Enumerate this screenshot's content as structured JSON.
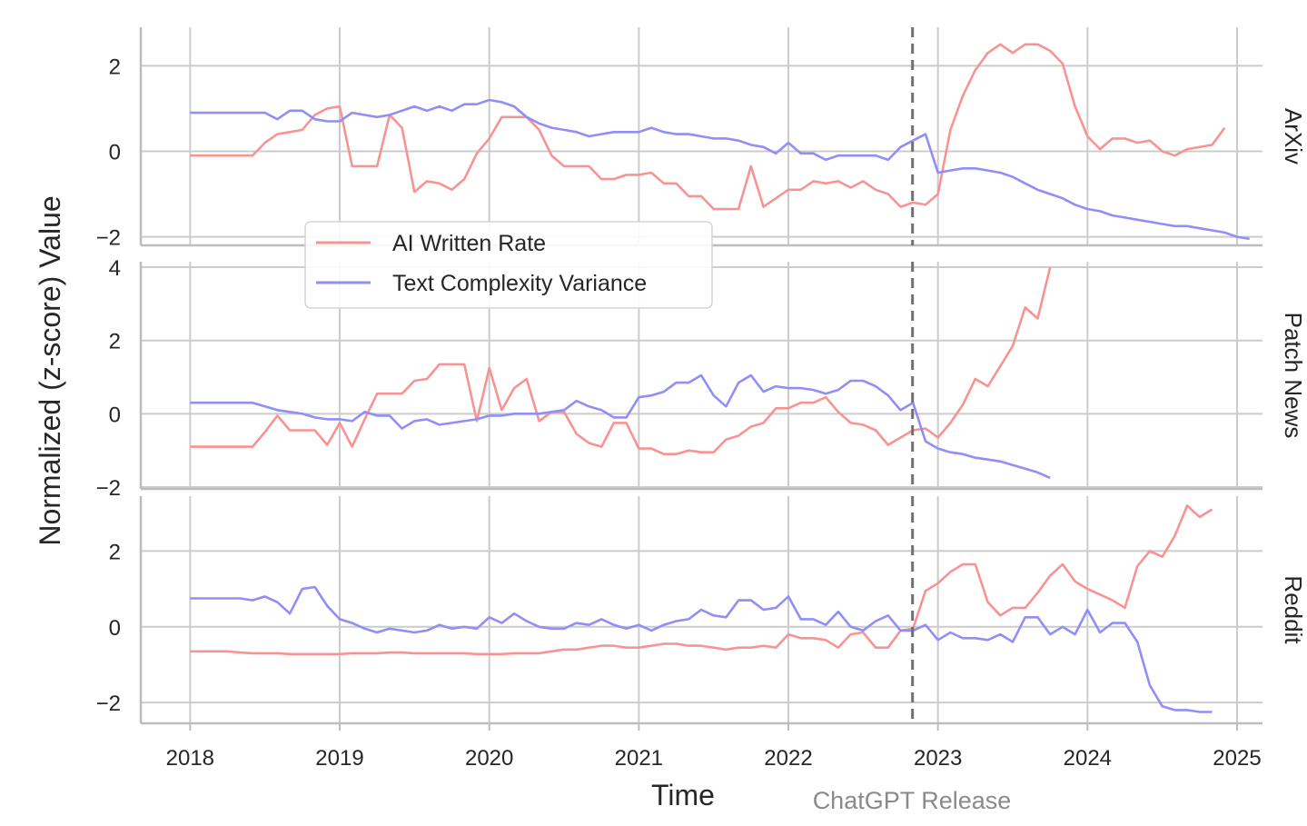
{
  "chart_data": {
    "type": "line",
    "xlabel": "Time",
    "ylabel": "Normalized (z-score) Value",
    "x_ticks": [
      "2018",
      "2019",
      "2020",
      "2021",
      "2022",
      "2023",
      "2024",
      "2025"
    ],
    "x_range": [
      2017.67,
      2025.17
    ],
    "grid": true,
    "legend_position": "top-left",
    "legend": [
      "AI Written Rate",
      "Text Complexity Variance"
    ],
    "colors": {
      "ai": "#f79493",
      "tcv": "#8f8ff5",
      "vline": "#707070",
      "grid": "#cccccc"
    },
    "annotation": {
      "text": "ChatGPT Release",
      "x": 2022.83
    },
    "panels": [
      {
        "label": "ArXiv",
        "ylim": [
          -2.2,
          2.9
        ],
        "yticks": [
          "2",
          "0",
          "−2"
        ],
        "ytick_values": [
          2,
          0,
          -2
        ],
        "series": [
          {
            "name": "AI Written Rate",
            "x_start": 2018.0,
            "step": 0.0833333,
            "values": [
              -0.1,
              -0.1,
              -0.1,
              -0.1,
              -0.1,
              -0.1,
              0.2,
              0.4,
              0.45,
              0.5,
              0.85,
              1.0,
              1.05,
              -0.35,
              -0.35,
              -0.35,
              0.85,
              0.55,
              -0.95,
              -0.7,
              -0.75,
              -0.9,
              -0.65,
              -0.05,
              0.3,
              0.8,
              0.8,
              0.8,
              0.5,
              -0.1,
              -0.35,
              -0.35,
              -0.35,
              -0.65,
              -0.65,
              -0.55,
              -0.55,
              -0.5,
              -0.75,
              -0.75,
              -1.05,
              -1.05,
              -1.35,
              -1.35,
              -1.35,
              -0.35,
              -1.3,
              -1.1,
              -0.9,
              -0.9,
              -0.7,
              -0.75,
              -0.7,
              -0.85,
              -0.7,
              -0.9,
              -1.0,
              -1.3,
              -1.2,
              -1.25,
              -1.0,
              0.5,
              1.3,
              1.9,
              2.3,
              2.5,
              2.3,
              2.5,
              2.5,
              2.35,
              2.05,
              1.05,
              0.35,
              0.05,
              0.3,
              0.3,
              0.2,
              0.25,
              0.0,
              -0.1,
              0.05,
              0.1,
              0.15,
              0.55
            ]
          },
          {
            "name": "Text Complexity Variance",
            "x_start": 2018.0,
            "step": 0.0833333,
            "values": [
              0.9,
              0.9,
              0.9,
              0.9,
              0.9,
              0.9,
              0.9,
              0.75,
              0.95,
              0.95,
              0.75,
              0.7,
              0.7,
              0.9,
              0.85,
              0.8,
              0.85,
              0.95,
              1.05,
              0.95,
              1.05,
              0.95,
              1.1,
              1.1,
              1.2,
              1.15,
              1.05,
              0.8,
              0.65,
              0.55,
              0.5,
              0.45,
              0.35,
              0.4,
              0.45,
              0.45,
              0.45,
              0.55,
              0.45,
              0.4,
              0.4,
              0.35,
              0.3,
              0.3,
              0.25,
              0.15,
              0.1,
              -0.05,
              0.2,
              -0.05,
              -0.05,
              -0.2,
              -0.1,
              -0.1,
              -0.1,
              -0.1,
              -0.2,
              0.1,
              0.25,
              0.4,
              -0.5,
              -0.45,
              -0.4,
              -0.4,
              -0.45,
              -0.5,
              -0.6,
              -0.75,
              -0.9,
              -1.0,
              -1.1,
              -1.25,
              -1.35,
              -1.4,
              -1.5,
              -1.55,
              -1.6,
              -1.65,
              -1.7,
              -1.75,
              -1.75,
              -1.8,
              -1.85,
              -1.9,
              -2.0,
              -2.05
            ]
          }
        ]
      },
      {
        "label": "Patch News",
        "ylim": [
          -2.05,
          4.15
        ],
        "yticks": [
          "4",
          "2",
          "0",
          "−2"
        ],
        "ytick_values": [
          4,
          2,
          0,
          -2
        ],
        "series": [
          {
            "name": "AI Written Rate",
            "x_start": 2018.0,
            "step": 0.0833333,
            "values": [
              -0.9,
              -0.9,
              -0.9,
              -0.9,
              -0.9,
              -0.9,
              -0.5,
              -0.05,
              -0.45,
              -0.45,
              -0.45,
              -0.85,
              -0.25,
              -0.9,
              -0.15,
              0.55,
              0.55,
              0.55,
              0.9,
              0.95,
              1.35,
              1.35,
              1.35,
              -0.2,
              1.25,
              0.1,
              0.7,
              0.95,
              -0.2,
              0.05,
              0.05,
              -0.55,
              -0.8,
              -0.9,
              -0.25,
              -0.25,
              -0.95,
              -0.95,
              -1.1,
              -1.1,
              -1.0,
              -1.05,
              -1.05,
              -0.7,
              -0.6,
              -0.35,
              -0.25,
              0.15,
              0.15,
              0.3,
              0.3,
              0.45,
              0.05,
              -0.25,
              -0.3,
              -0.45,
              -0.85,
              -0.65,
              -0.45,
              -0.4,
              -0.65,
              -0.25,
              0.25,
              0.95,
              0.75,
              1.3,
              1.85,
              2.9,
              2.6,
              4.0
            ]
          },
          {
            "name": "Text Complexity Variance",
            "x_start": 2018.0,
            "step": 0.0833333,
            "values": [
              0.3,
              0.3,
              0.3,
              0.3,
              0.3,
              0.3,
              0.2,
              0.1,
              0.05,
              0.0,
              -0.1,
              -0.15,
              -0.15,
              -0.2,
              0.05,
              -0.05,
              -0.05,
              -0.4,
              -0.2,
              -0.15,
              -0.3,
              -0.25,
              -0.2,
              -0.15,
              -0.05,
              -0.05,
              0.0,
              0.0,
              0.0,
              0.05,
              0.1,
              0.35,
              0.2,
              0.1,
              -0.1,
              -0.1,
              0.45,
              0.5,
              0.6,
              0.85,
              0.85,
              1.05,
              0.5,
              0.2,
              0.85,
              1.05,
              0.6,
              0.75,
              0.7,
              0.7,
              0.65,
              0.55,
              0.65,
              0.9,
              0.9,
              0.75,
              0.5,
              0.1,
              0.3,
              -0.75,
              -0.95,
              -1.05,
              -1.1,
              -1.2,
              -1.25,
              -1.3,
              -1.4,
              -1.5,
              -1.6,
              -1.75
            ]
          }
        ]
      },
      {
        "label": "Reddit",
        "ylim": [
          -2.55,
          3.45
        ],
        "yticks": [
          "2",
          "0",
          "−2"
        ],
        "ytick_values": [
          2,
          0,
          -2
        ],
        "series": [
          {
            "name": "AI Written Rate",
            "x_start": 2018.0,
            "step": 0.0833333,
            "values": [
              -0.65,
              -0.65,
              -0.65,
              -0.65,
              -0.68,
              -0.7,
              -0.7,
              -0.7,
              -0.72,
              -0.72,
              -0.72,
              -0.72,
              -0.72,
              -0.7,
              -0.7,
              -0.7,
              -0.68,
              -0.68,
              -0.7,
              -0.7,
              -0.7,
              -0.7,
              -0.7,
              -0.72,
              -0.72,
              -0.72,
              -0.7,
              -0.7,
              -0.7,
              -0.65,
              -0.6,
              -0.6,
              -0.55,
              -0.5,
              -0.5,
              -0.55,
              -0.55,
              -0.5,
              -0.45,
              -0.45,
              -0.5,
              -0.5,
              -0.55,
              -0.6,
              -0.55,
              -0.55,
              -0.5,
              -0.55,
              -0.2,
              -0.3,
              -0.3,
              -0.35,
              -0.55,
              -0.2,
              -0.15,
              -0.55,
              -0.55,
              -0.1,
              -0.05,
              0.95,
              1.15,
              1.45,
              1.65,
              1.65,
              0.65,
              0.3,
              0.5,
              0.5,
              0.9,
              1.35,
              1.65,
              1.2,
              1.0,
              0.85,
              0.7,
              0.5,
              1.6,
              2.0,
              1.85,
              2.4,
              3.2,
              2.9,
              3.1
            ]
          },
          {
            "name": "Text Complexity Variance",
            "x_start": 2018.0,
            "step": 0.0833333,
            "values": [
              0.75,
              0.75,
              0.75,
              0.75,
              0.75,
              0.7,
              0.8,
              0.65,
              0.35,
              1.0,
              1.05,
              0.55,
              0.2,
              0.1,
              -0.05,
              -0.15,
              -0.05,
              -0.1,
              -0.15,
              -0.1,
              0.05,
              -0.05,
              0.0,
              -0.05,
              0.25,
              0.1,
              0.35,
              0.15,
              0.0,
              -0.05,
              -0.05,
              0.1,
              0.05,
              0.2,
              0.05,
              -0.05,
              0.05,
              -0.1,
              0.05,
              0.15,
              0.2,
              0.45,
              0.3,
              0.25,
              0.7,
              0.7,
              0.45,
              0.5,
              0.8,
              0.2,
              0.2,
              0.05,
              0.4,
              0.0,
              -0.1,
              0.15,
              0.3,
              -0.1,
              -0.1,
              0.05,
              -0.35,
              -0.15,
              -0.3,
              -0.3,
              -0.35,
              -0.2,
              -0.4,
              0.25,
              0.25,
              -0.2,
              0.0,
              -0.2,
              0.45,
              -0.15,
              0.1,
              0.1,
              -0.4,
              -1.55,
              -2.1,
              -2.2,
              -2.2,
              -2.25,
              -2.25
            ]
          }
        ]
      }
    ]
  }
}
